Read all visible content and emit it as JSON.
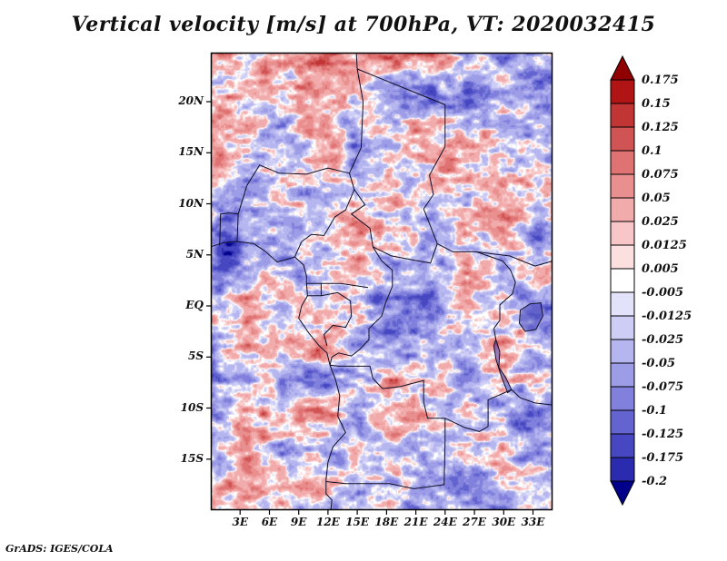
{
  "header": {
    "title": "Vertical velocity [m/s] at 700hPa, VT: 2020032415"
  },
  "footer": {
    "credit": "GrADS: IGES/COLA"
  },
  "chart_data": {
    "type": "heatmap",
    "title": "Vertical velocity [m/s] at 700hPa, VT: 2020032415",
    "variable": "Vertical velocity",
    "units": "m/s",
    "pressure_level": "700hPa",
    "valid_time": "2020032415",
    "x_tick_labels": [
      "3E",
      "6E",
      "9E",
      "12E",
      "15E",
      "18E",
      "21E",
      "24E",
      "27E",
      "30E",
      "33E"
    ],
    "x_tick_lons": [
      3,
      6,
      9,
      12,
      15,
      18,
      21,
      24,
      27,
      30,
      33
    ],
    "y_tick_labels": [
      "20N",
      "15N",
      "10N",
      "5N",
      "EQ",
      "5S",
      "10S",
      "15S"
    ],
    "y_tick_lats": [
      20,
      15,
      10,
      5,
      0,
      -5,
      -10,
      -15
    ],
    "lon_range": [
      0,
      35
    ],
    "lat_range": [
      -20,
      24.8
    ],
    "grid": false,
    "legend_position": "right",
    "colorbar_labels": [
      "0.175",
      "0.15",
      "0.125",
      "0.1",
      "0.075",
      "0.05",
      "0.025",
      "0.0125",
      "0.005",
      "-0.005",
      "-0.0125",
      "-0.025",
      "-0.05",
      "-0.075",
      "-0.1",
      "-0.125",
      "-0.175",
      "-0.2"
    ],
    "colorbar_levels": [
      0.175,
      0.15,
      0.125,
      0.1,
      0.075,
      0.05,
      0.025,
      0.0125,
      0.005,
      -0.005,
      -0.0125,
      -0.025,
      -0.05,
      -0.075,
      -0.1,
      -0.125,
      -0.175,
      -0.2
    ],
    "colorbar_colors": [
      "#8f0000",
      "#b01414",
      "#c13535",
      "#d15454",
      "#df7272",
      "#ea8f8f",
      "#f2abab",
      "#f8c6c6",
      "#fcdfdf",
      "#ffffff",
      "#e2e2fa",
      "#cdcdf5",
      "#b5b5ef",
      "#9c9ce7",
      "#8181dd",
      "#6464d0",
      "#4747c2",
      "#2b2bb0",
      "#00008b"
    ]
  }
}
